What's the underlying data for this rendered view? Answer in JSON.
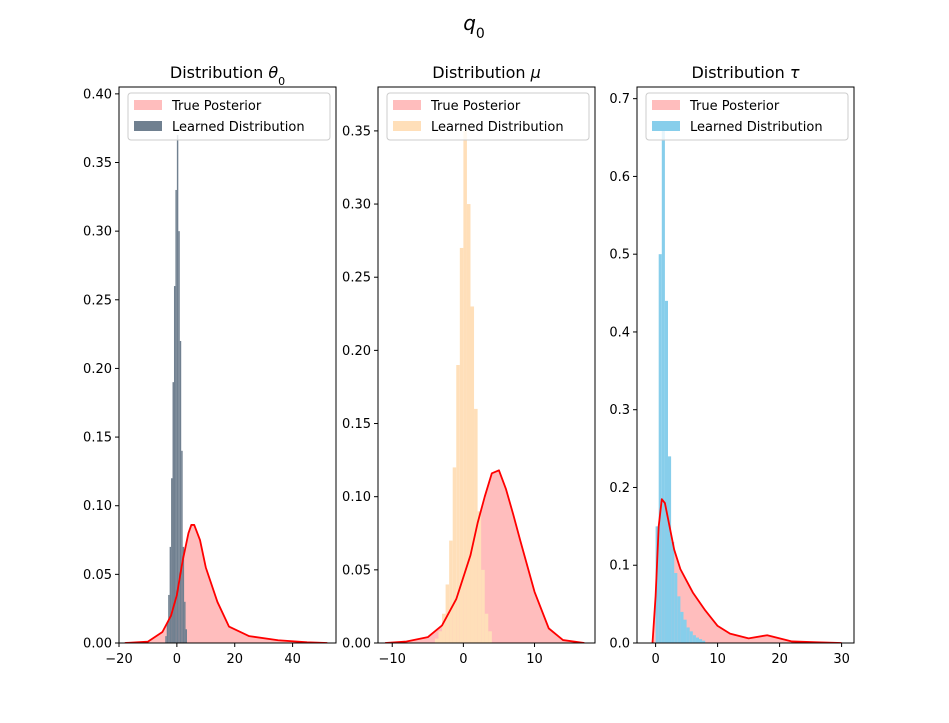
{
  "figure_title": "q",
  "figure_title_sub": "0",
  "colors": {
    "true_fill": "#ffbdbd",
    "true_line": "#ff0000",
    "axes": "#000000"
  },
  "chart_data": [
    {
      "type": "histogram",
      "title": "Distribution θ",
      "title_sub": "0",
      "xlim": [
        -20,
        55
      ],
      "ylim": [
        0,
        0.405
      ],
      "xticks": [
        -20,
        0,
        20,
        40
      ],
      "yticks": [
        0.0,
        0.05,
        0.1,
        0.15,
        0.2,
        0.25,
        0.3,
        0.35,
        0.4
      ],
      "ytick_decimals": 2,
      "legend": [
        "True Posterior",
        "Learned Distribution"
      ],
      "legend_position": "top-right",
      "learned_color": "#708090",
      "learned_bins": {
        "edges": [
          -4.0,
          -3.5,
          -3.0,
          -2.5,
          -2.0,
          -1.5,
          -1.0,
          -0.5,
          0.0,
          0.5,
          1.0,
          1.5,
          2.0,
          2.5,
          3.0,
          3.5
        ],
        "values": [
          0.005,
          0.015,
          0.035,
          0.07,
          0.12,
          0.19,
          0.26,
          0.33,
          0.37,
          0.3,
          0.22,
          0.14,
          0.07,
          0.03,
          0.01
        ]
      },
      "true_posterior": {
        "x": [
          -18,
          -10,
          -5,
          -2,
          0,
          2,
          4,
          5,
          6,
          8,
          10,
          14,
          18,
          25,
          35,
          45,
          52
        ],
        "y": [
          0.0,
          0.001,
          0.008,
          0.02,
          0.035,
          0.06,
          0.08,
          0.086,
          0.086,
          0.075,
          0.055,
          0.03,
          0.012,
          0.005,
          0.002,
          0.0005,
          0.0
        ]
      }
    },
    {
      "type": "histogram",
      "title": "Distribution μ",
      "title_sub": "",
      "xlim": [
        -12,
        18.5
      ],
      "ylim": [
        0,
        0.38
      ],
      "xticks": [
        -10,
        0,
        10
      ],
      "yticks": [
        0.0,
        0.05,
        0.1,
        0.15,
        0.2,
        0.25,
        0.3,
        0.35
      ],
      "ytick_decimals": 2,
      "legend": [
        "True Posterior",
        "Learned Distribution"
      ],
      "legend_position": "top-right",
      "learned_color": "#ffdfb9",
      "learned_bins": {
        "edges": [
          -4.0,
          -3.5,
          -3.0,
          -2.5,
          -2.0,
          -1.5,
          -1.0,
          -0.5,
          0.0,
          0.5,
          1.0,
          1.5,
          2.0,
          2.5,
          3.0,
          3.5,
          4.0
        ],
        "values": [
          0.003,
          0.008,
          0.02,
          0.04,
          0.07,
          0.12,
          0.19,
          0.27,
          0.35,
          0.3,
          0.23,
          0.16,
          0.09,
          0.05,
          0.02,
          0.008
        ]
      },
      "true_posterior": {
        "x": [
          -11,
          -8,
          -5,
          -3,
          -1,
          1,
          2,
          3,
          4,
          5,
          6,
          7,
          8,
          10,
          12,
          14,
          17
        ],
        "y": [
          0.0,
          0.001,
          0.004,
          0.012,
          0.03,
          0.06,
          0.082,
          0.1,
          0.116,
          0.118,
          0.105,
          0.088,
          0.07,
          0.035,
          0.01,
          0.002,
          0.0
        ]
      }
    },
    {
      "type": "histogram",
      "title": "Distribution τ",
      "title_sub": "",
      "xlim": [
        -3,
        32
      ],
      "ylim": [
        0,
        0.715
      ],
      "xticks": [
        0,
        10,
        20,
        30
      ],
      "yticks": [
        0.0,
        0.1,
        0.2,
        0.3,
        0.4,
        0.5,
        0.6,
        0.7
      ],
      "ytick_decimals": 1,
      "legend": [
        "True Posterior",
        "Learned Distribution"
      ],
      "legend_position": "top-right",
      "learned_color": "#87ceeb",
      "learned_bins": {
        "edges": [
          0.0,
          0.5,
          1.0,
          1.5,
          2.0,
          2.5,
          3.0,
          3.5,
          4.0,
          4.5,
          5.0,
          5.5,
          6.0,
          6.5,
          7.0,
          7.5,
          8.0
        ],
        "values": [
          0.15,
          0.5,
          0.66,
          0.44,
          0.24,
          0.13,
          0.09,
          0.06,
          0.04,
          0.03,
          0.02,
          0.015,
          0.01,
          0.007,
          0.005,
          0.003
        ]
      },
      "true_posterior": {
        "x": [
          -0.5,
          0,
          0.5,
          1,
          1.5,
          2,
          3,
          4,
          5,
          6,
          8,
          10,
          12,
          15,
          18,
          22,
          26,
          30
        ],
        "y": [
          0.0,
          0.06,
          0.15,
          0.185,
          0.18,
          0.16,
          0.12,
          0.095,
          0.08,
          0.065,
          0.042,
          0.022,
          0.012,
          0.006,
          0.01,
          0.002,
          0.001,
          0.0
        ]
      }
    }
  ]
}
